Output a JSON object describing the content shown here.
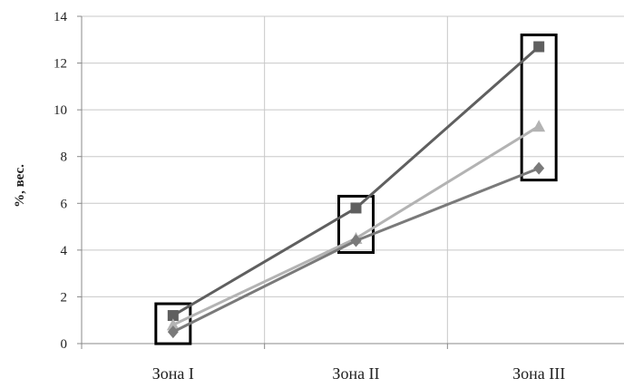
{
  "chart_data": {
    "type": "line",
    "title": "",
    "xlabel": "",
    "ylabel": "%, вес.",
    "categories": [
      "Зона I",
      "Зона II",
      "Зона III"
    ],
    "ylim": [
      0,
      14
    ],
    "yticks": [
      "0",
      "2",
      "4",
      "6",
      "8",
      "10",
      "12",
      "14"
    ],
    "grid": true,
    "legend": "none",
    "series": [
      {
        "values": [
          1.2,
          5.8,
          12.7
        ],
        "color": "#5f5f5f",
        "marker": "square"
      },
      {
        "values": [
          0.8,
          4.5,
          9.3
        ],
        "color": "#b3b3b3",
        "marker": "triangle"
      },
      {
        "values": [
          0.5,
          4.4,
          7.5
        ],
        "color": "#7a7a7a",
        "marker": "diamond"
      }
    ]
  }
}
